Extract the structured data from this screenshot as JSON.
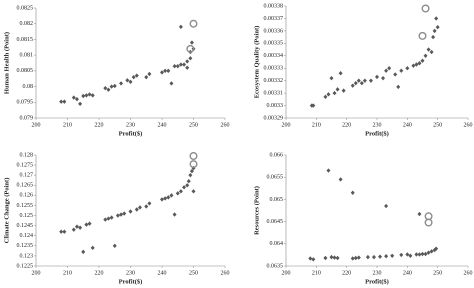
{
  "chart_data": [
    {
      "type": "scatter",
      "xlabel": "Profit($)",
      "ylabel": "Human Health (Point)",
      "xlim": [
        200,
        260
      ],
      "xticks": [
        200,
        210,
        220,
        230,
        240,
        250,
        260
      ],
      "ylim": [
        0.079,
        0.0825
      ],
      "yticks": [
        0.079,
        0.0795,
        0.08,
        0.0805,
        0.081,
        0.0815,
        0.082,
        0.0825
      ],
      "series": [
        {
          "marker": "diamond",
          "color": "#595959",
          "x": [
            208,
            209,
            212,
            213,
            214,
            215,
            216,
            217,
            218,
            222,
            223,
            224,
            225,
            227,
            229,
            230,
            231,
            232,
            235,
            236,
            240,
            241,
            242,
            243,
            244,
            245,
            246,
            246,
            247,
            248,
            248,
            249,
            249,
            250,
            249.5
          ],
          "y": [
            0.07952,
            0.07952,
            0.07965,
            0.0796,
            0.07945,
            0.0797,
            0.07972,
            0.07975,
            0.07972,
            0.07995,
            0.0799,
            0.08,
            0.08002,
            0.0801,
            0.0802,
            0.08015,
            0.0803,
            0.08035,
            0.0803,
            0.0804,
            0.08045,
            0.0805,
            0.0805,
            0.0801,
            0.08065,
            0.08065,
            0.0807,
            0.0819,
            0.0807,
            0.0808,
            0.0806,
            0.0809,
            0.0811,
            0.0812,
            0.0814
          ]
        },
        {
          "marker": "circle",
          "color": "#8c8c8c",
          "x": [
            250,
            249
          ],
          "y": [
            0.082,
            0.0812
          ]
        }
      ]
    },
    {
      "type": "scatter",
      "xlabel": "Profit($)",
      "ylabel": "Ecosystem Quality (Point)",
      "xlim": [
        200,
        260
      ],
      "xticks": [
        200,
        210,
        220,
        230,
        240,
        250,
        260
      ],
      "ylim": [
        0.00329,
        0.00338
      ],
      "yticks": [
        0.00329,
        0.0033,
        0.00331,
        0.00332,
        0.00333,
        0.00334,
        0.00335,
        0.00336,
        0.00337,
        0.00338
      ],
      "series": [
        {
          "marker": "diamond",
          "color": "#595959",
          "x": [
            208.5,
            209,
            213,
            214,
            215,
            216,
            217,
            218,
            219,
            222,
            223,
            224,
            225,
            226,
            228,
            230,
            232,
            233,
            234,
            236,
            237,
            238,
            240,
            242,
            243,
            244,
            245,
            246,
            247,
            248,
            248.5,
            249,
            249.5,
            250
          ],
          "y": [
            0.0033,
            0.0033,
            0.003307,
            0.003309,
            0.003322,
            0.00331,
            0.003313,
            0.003326,
            0.003312,
            0.003316,
            0.003318,
            0.00332,
            0.003318,
            0.00332,
            0.00332,
            0.003323,
            0.003322,
            0.003328,
            0.00333,
            0.003325,
            0.003315,
            0.003328,
            0.00333,
            0.003332,
            0.003333,
            0.003334,
            0.003336,
            0.00334,
            0.003345,
            0.003343,
            0.003355,
            0.00336,
            0.00337,
            0.003363
          ]
        },
        {
          "marker": "circle",
          "color": "#8c8c8c",
          "x": [
            246,
            245
          ],
          "y": [
            0.003378,
            0.003356
          ]
        }
      ]
    },
    {
      "type": "scatter",
      "xlabel": "Profit($)",
      "ylabel": "Climate Change (Point)",
      "xlim": [
        200,
        260
      ],
      "xticks": [
        200,
        210,
        220,
        230,
        240,
        250,
        260
      ],
      "ylim": [
        0.1225,
        0.128
      ],
      "yticks": [
        0.1225,
        0.123,
        0.1235,
        0.124,
        0.1245,
        0.125,
        0.1255,
        0.126,
        0.1265,
        0.127,
        0.1275,
        0.128
      ],
      "series": [
        {
          "marker": "diamond",
          "color": "#595959",
          "x": [
            208,
            209,
            212,
            213,
            214,
            215,
            216,
            217,
            218,
            222,
            223,
            224,
            225,
            226,
            227,
            228,
            230,
            232,
            233,
            235,
            236,
            240,
            241,
            242,
            243,
            244,
            245,
            246,
            247,
            248,
            248.5,
            249,
            249.5,
            250,
            250
          ],
          "y": [
            0.1242,
            0.1242,
            0.1243,
            0.12445,
            0.1244,
            0.1232,
            0.12455,
            0.1246,
            0.1234,
            0.1248,
            0.12485,
            0.1249,
            0.1235,
            0.125,
            0.12505,
            0.1251,
            0.1252,
            0.1253,
            0.1254,
            0.12545,
            0.1256,
            0.1258,
            0.12585,
            0.1259,
            0.126,
            0.12505,
            0.1261,
            0.1262,
            0.1264,
            0.1265,
            0.1267,
            0.127,
            0.1272,
            0.12735,
            0.1262
          ]
        },
        {
          "marker": "circle",
          "color": "#8c8c8c",
          "x": [
            250,
            250
          ],
          "y": [
            0.12795,
            0.12755
          ]
        }
      ]
    },
    {
      "type": "scatter",
      "xlabel": "Profit($)",
      "ylabel": "Resources (Point)",
      "xlim": [
        200,
        260
      ],
      "xticks": [
        200,
        210,
        220,
        230,
        240,
        250,
        260
      ],
      "ylim": [
        0.0635,
        0.066
      ],
      "yticks": [
        0.0635,
        0.064,
        0.0645,
        0.065,
        0.0655,
        0.066
      ],
      "series": [
        {
          "marker": "diamond",
          "color": "#595959",
          "x": [
            208,
            209,
            213,
            214,
            215,
            216,
            217,
            218,
            222,
            222,
            223,
            224,
            227,
            229,
            231,
            233,
            233,
            235,
            238,
            240,
            241,
            243,
            244,
            244,
            245,
            246,
            247,
            248,
            249,
            249.5
          ],
          "y": [
            0.06367,
            0.06365,
            0.06368,
            0.06565,
            0.0637,
            0.06369,
            0.06368,
            0.06545,
            0.06367,
            0.06515,
            0.06368,
            0.06369,
            0.0637,
            0.0637,
            0.06371,
            0.06372,
            0.06485,
            0.06373,
            0.06375,
            0.06376,
            0.06373,
            0.06376,
            0.06376,
            0.06467,
            0.06377,
            0.06377,
            0.0638,
            0.06383,
            0.06386,
            0.06389
          ]
        },
        {
          "marker": "circle",
          "color": "#8c8c8c",
          "x": [
            247,
            247
          ],
          "y": [
            0.06462,
            0.06448
          ]
        }
      ]
    }
  ]
}
